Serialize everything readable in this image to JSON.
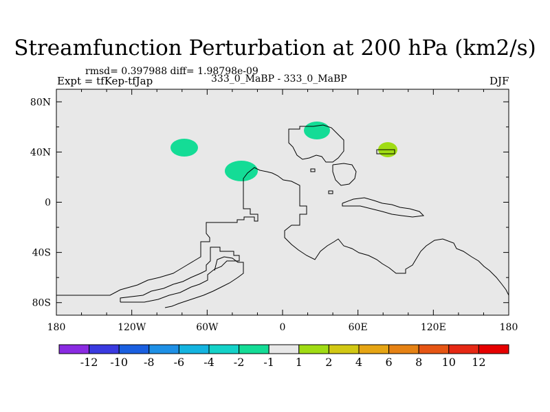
{
  "title": "Streamfunction Perturbation at 200 hPa (km2/s)",
  "stats_line": "rmsd= 0.397988 diff= 1.98798e-09",
  "experiment": "Expt = tfKep-tfJap",
  "comparison": "333_0_MaBP - 333_0_MaBP",
  "season": "DJF",
  "x_ticks": [
    "180",
    "120W",
    "60W",
    "0",
    "60E",
    "120E",
    "180"
  ],
  "y_ticks": [
    "80N",
    "40N",
    "0",
    "40S",
    "80S"
  ],
  "map_background": "#e8e8e8",
  "colorbar": {
    "colors": [
      "#8a2be2",
      "#3a3ae0",
      "#1a5fe0",
      "#1e90e6",
      "#14b4e0",
      "#14d2c8",
      "#14dc96",
      "#e8e8e8",
      "#a0dc14",
      "#d2c814",
      "#e6a514",
      "#e68214",
      "#e65514",
      "#e62814",
      "#e60000"
    ],
    "labels": [
      "-12",
      "-10",
      "-8",
      "-6",
      "-4",
      "-2",
      "-1",
      "1",
      "2",
      "4",
      "6",
      "8",
      "10",
      "12"
    ]
  },
  "anomalies": [
    {
      "name": "anomaly-left-atlantic",
      "category": "-1",
      "color": "#14dc96"
    },
    {
      "name": "anomaly-mid-atlantic",
      "category": "-1",
      "color": "#14dc96"
    },
    {
      "name": "anomaly-scandinavia",
      "category": "-1",
      "color": "#14dc96"
    },
    {
      "name": "anomaly-central-asia",
      "category": "1",
      "color": "#a0dc14"
    }
  ]
}
